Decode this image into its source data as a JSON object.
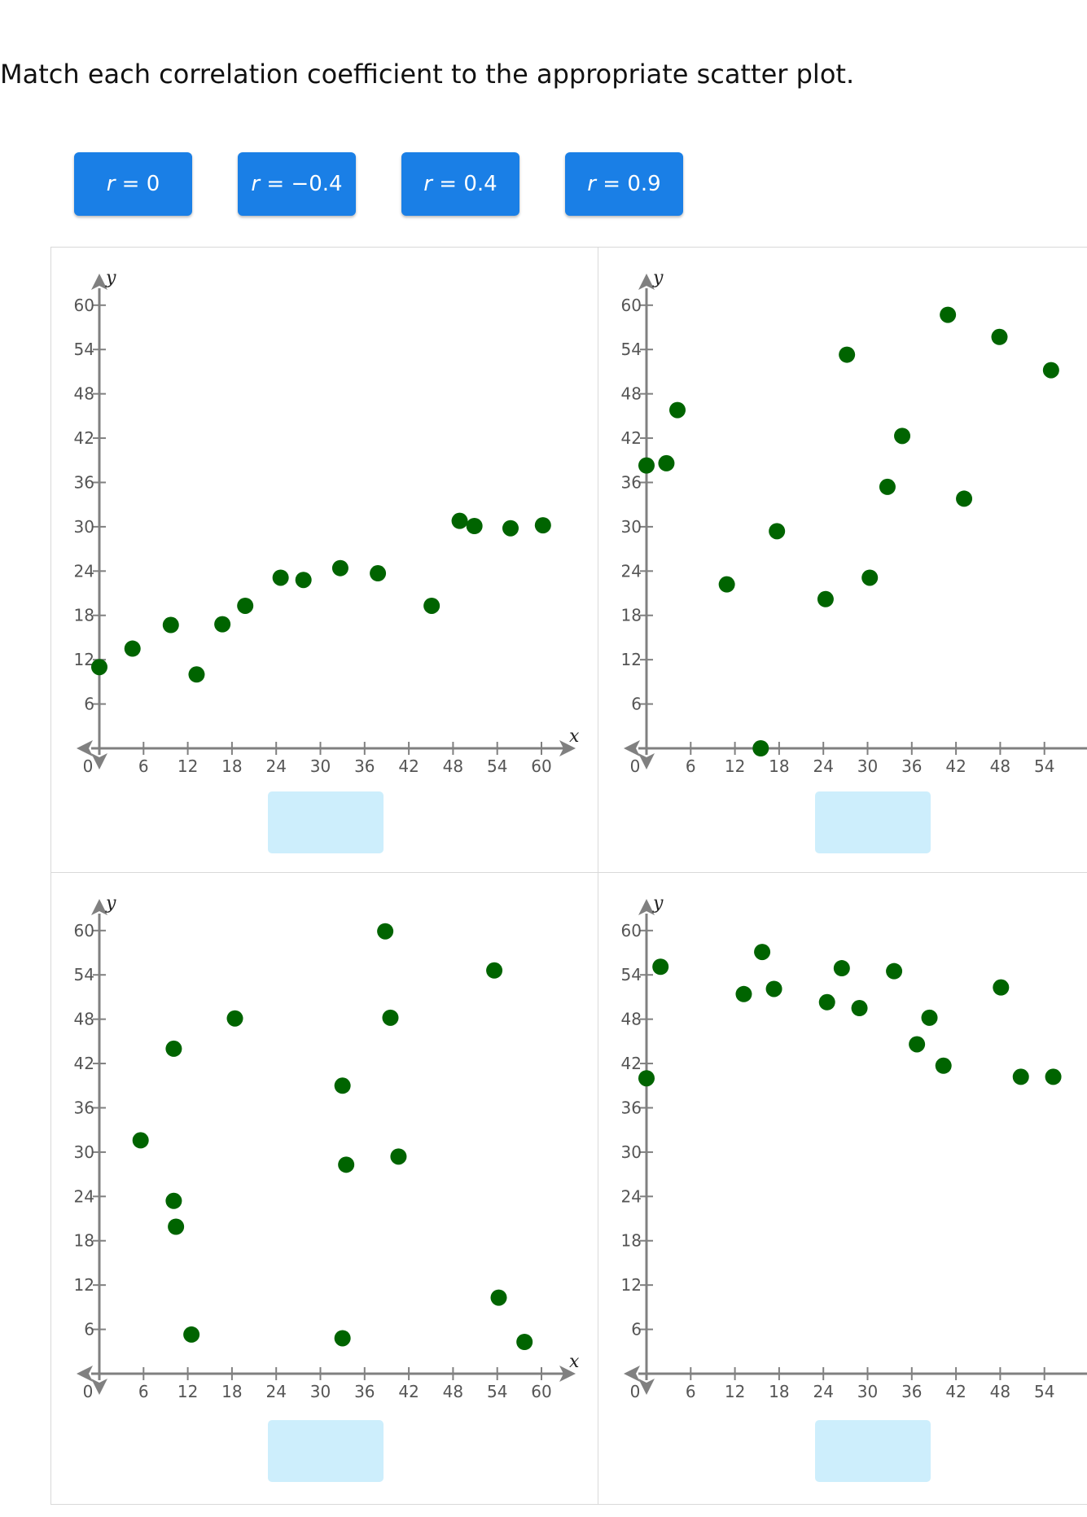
{
  "instructions": "Match each correlation coefficient to the appropriate scatter plot.",
  "tiles": [
    {
      "var": "r",
      "eq": " = ",
      "val": "0"
    },
    {
      "var": "r",
      "eq": " = ",
      "val": "−0.4"
    },
    {
      "var": "r",
      "eq": " = ",
      "val": "0.4"
    },
    {
      "var": "r",
      "eq": " = ",
      "val": "0.9"
    }
  ],
  "colors": {
    "tile": "#1a7fe6",
    "point": "#006400",
    "axis": "#808080",
    "dropzone": "#cdeefc"
  },
  "chart_data": [
    {
      "type": "scatter",
      "xlabel": "x",
      "ylabel": "y",
      "xlim": [
        0,
        62
      ],
      "ylim": [
        0,
        62
      ],
      "xticks": [
        6,
        12,
        18,
        24,
        30,
        36,
        42,
        48,
        54,
        60
      ],
      "yticks": [
        6,
        12,
        18,
        24,
        30,
        36,
        42,
        48,
        54,
        60
      ],
      "origin_label": "0",
      "points": [
        [
          0,
          11
        ],
        [
          4.5,
          13.5
        ],
        [
          9.7,
          16.7
        ],
        [
          13.2,
          10
        ],
        [
          16.7,
          16.8
        ],
        [
          19.8,
          19.3
        ],
        [
          24.6,
          23.1
        ],
        [
          27.7,
          22.8
        ],
        [
          32.7,
          24.4
        ],
        [
          37.8,
          23.7
        ],
        [
          45.1,
          19.3
        ],
        [
          48.9,
          30.8
        ],
        [
          50.9,
          30.1
        ],
        [
          55.8,
          29.8
        ],
        [
          60.2,
          30.2
        ]
      ]
    },
    {
      "type": "scatter",
      "xlabel": "",
      "ylabel": "y",
      "xlim": [
        0,
        57
      ],
      "ylim": [
        0,
        62
      ],
      "xticks": [
        6,
        12,
        18,
        24,
        30,
        36,
        42,
        48,
        54
      ],
      "yticks": [
        6,
        12,
        18,
        24,
        30,
        36,
        42,
        48,
        54,
        60
      ],
      "origin_label": "0",
      "points": [
        [
          0,
          38.3
        ],
        [
          2.7,
          38.6
        ],
        [
          4.2,
          45.8
        ],
        [
          10.9,
          22.2
        ],
        [
          15.5,
          0
        ],
        [
          17.7,
          29.4
        ],
        [
          24.3,
          20.2
        ],
        [
          27.2,
          53.3
        ],
        [
          30.3,
          23.1
        ],
        [
          32.7,
          35.4
        ],
        [
          34.7,
          42.3
        ],
        [
          40.9,
          58.7
        ],
        [
          43.1,
          33.8
        ],
        [
          47.9,
          55.7
        ],
        [
          54.9,
          51.2
        ]
      ]
    },
    {
      "type": "scatter",
      "xlabel": "x",
      "ylabel": "y",
      "xlim": [
        0,
        62
      ],
      "ylim": [
        0,
        62
      ],
      "xticks": [
        6,
        12,
        18,
        24,
        30,
        36,
        42,
        48,
        54,
        60
      ],
      "yticks": [
        6,
        12,
        18,
        24,
        30,
        36,
        42,
        48,
        54,
        60
      ],
      "origin_label": "0",
      "points": [
        [
          5.6,
          31.6
        ],
        [
          10.1,
          44
        ],
        [
          10.1,
          23.4
        ],
        [
          10.4,
          19.9
        ],
        [
          12.5,
          5.3
        ],
        [
          18.4,
          48.1
        ],
        [
          33,
          39
        ],
        [
          33.5,
          28.3
        ],
        [
          33,
          4.8
        ],
        [
          38.8,
          59.9
        ],
        [
          39.5,
          48.2
        ],
        [
          40.6,
          29.4
        ],
        [
          53.6,
          54.6
        ],
        [
          54.2,
          10.3
        ],
        [
          57.7,
          4.3
        ]
      ]
    },
    {
      "type": "scatter",
      "xlabel": "",
      "ylabel": "y",
      "xlim": [
        0,
        57
      ],
      "ylim": [
        0,
        62
      ],
      "xticks": [
        6,
        12,
        18,
        24,
        30,
        36,
        42,
        48,
        54
      ],
      "yticks": [
        6,
        12,
        18,
        24,
        30,
        36,
        42,
        48,
        54,
        60
      ],
      "origin_label": "0",
      "points": [
        [
          0,
          40
        ],
        [
          1.9,
          55.1
        ],
        [
          13.2,
          51.4
        ],
        [
          15.7,
          57.1
        ],
        [
          17.3,
          52.1
        ],
        [
          24.5,
          50.3
        ],
        [
          26.5,
          54.9
        ],
        [
          28.9,
          49.5
        ],
        [
          33.6,
          54.5
        ],
        [
          36.7,
          44.6
        ],
        [
          38.4,
          48.2
        ],
        [
          40.3,
          41.7
        ],
        [
          48.1,
          52.3
        ],
        [
          50.8,
          40.2
        ],
        [
          55.2,
          40.2
        ]
      ]
    }
  ]
}
